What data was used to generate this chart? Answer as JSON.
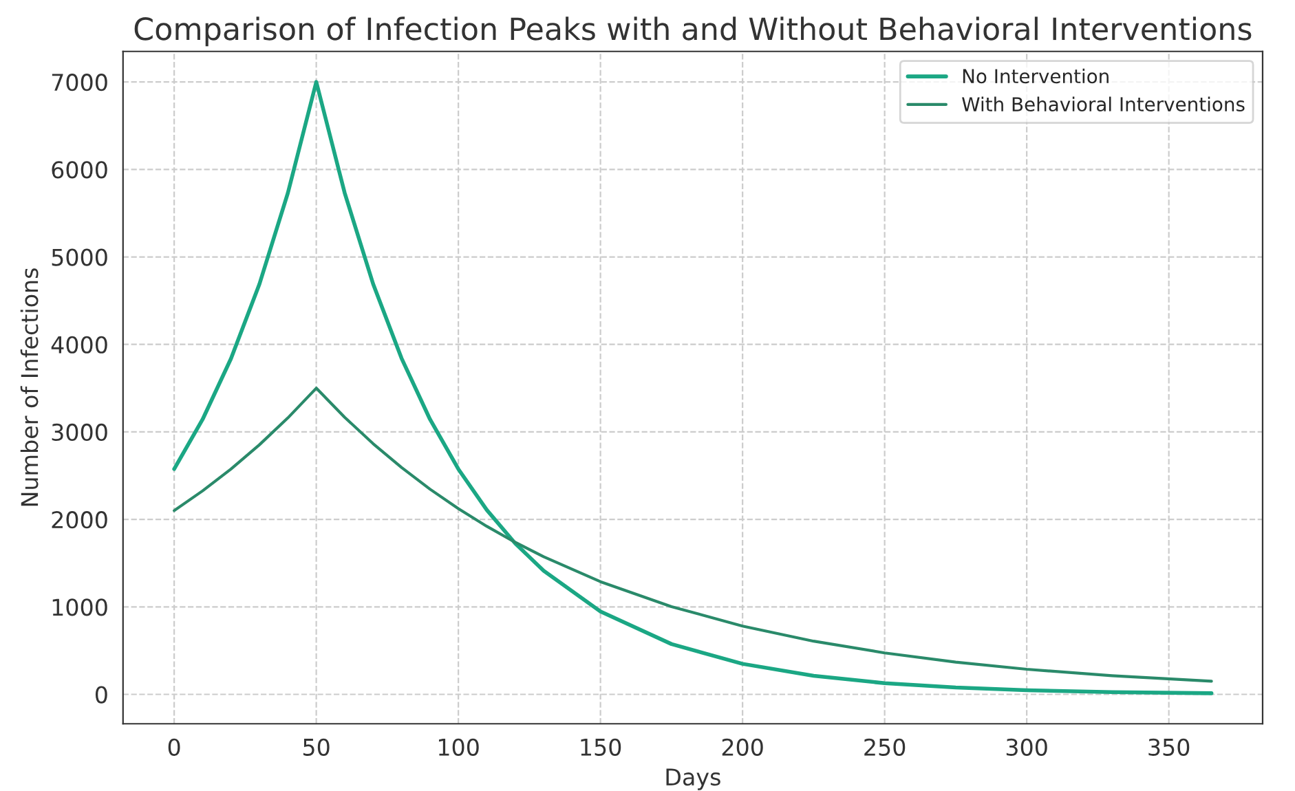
{
  "chart_data": {
    "type": "line",
    "title": "Comparison of Infection Peaks with and Without Behavioral Interventions",
    "xlabel": "Days",
    "ylabel": "Number of Infections",
    "series": [
      {
        "name": "No Intervention",
        "color": "#1ba784",
        "x": [
          0,
          10,
          20,
          30,
          40,
          50,
          60,
          70,
          80,
          90,
          100,
          110,
          120,
          130,
          150,
          175,
          200,
          225,
          250,
          275,
          300,
          330,
          365
        ],
        "values": [
          2576,
          3143,
          3839,
          4690,
          5730,
          7000,
          5731,
          4692,
          3842,
          3145,
          2575,
          2108,
          1726,
          1413,
          947,
          575,
          349,
          212,
          128,
          78,
          47,
          26,
          13
        ]
      },
      {
        "name": "With Behavioral Interventions",
        "color": "#2a8a6a",
        "x": [
          0,
          10,
          20,
          30,
          40,
          50,
          60,
          70,
          80,
          90,
          100,
          110,
          120,
          130,
          150,
          175,
          200,
          225,
          250,
          275,
          300,
          330,
          365
        ],
        "values": [
          2100,
          2326,
          2576,
          2853,
          3160,
          3500,
          3167,
          2865,
          2593,
          2346,
          2123,
          1921,
          1738,
          1573,
          1288,
          1003,
          781,
          608,
          474,
          369,
          287,
          213,
          150
        ]
      }
    ],
    "xlim": [
      -18,
      383
    ],
    "xticks": [
      0,
      50,
      100,
      150,
      200,
      250,
      300,
      350
    ],
    "ylim": [
      -336,
      7349
    ],
    "yticks": [
      0,
      1000,
      2000,
      3000,
      4000,
      5000,
      6000,
      7000
    ],
    "grid": true,
    "legend": "top right",
    "line_style": "solid",
    "marker": "none"
  }
}
